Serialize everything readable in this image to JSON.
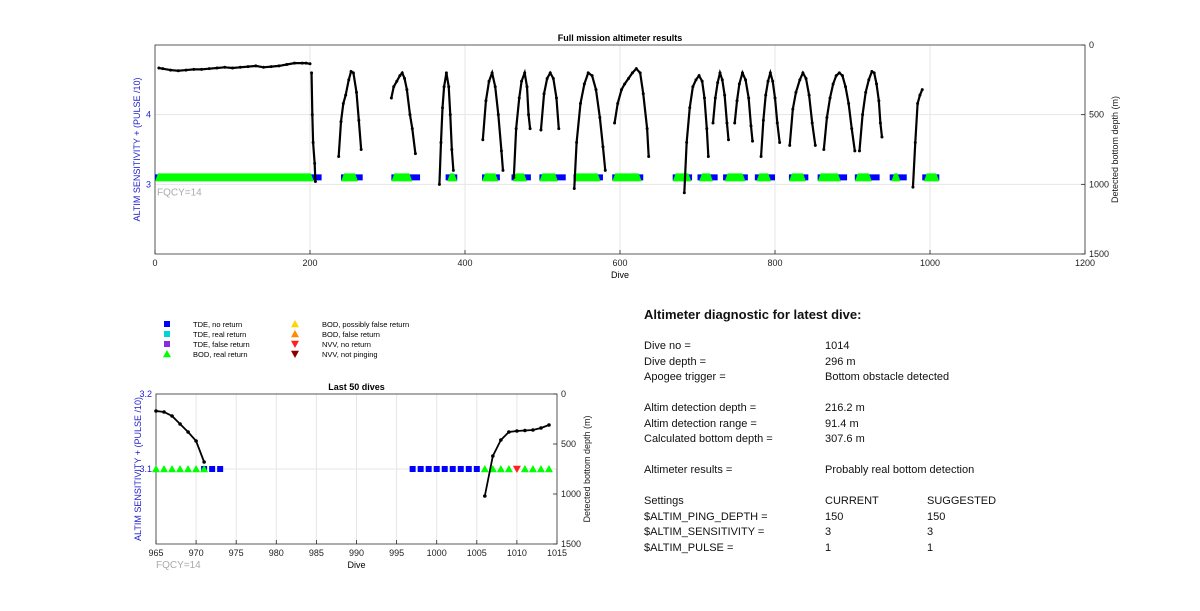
{
  "chart_data": [
    {
      "type": "scatter",
      "title": "Full mission altimeter results",
      "xlabel": "Dive",
      "ylabel_left": "ALTIM SENSITIVITY + (PULSE /10)",
      "ylabel_right": "Detected bottom depth (m)",
      "xlim": [
        0,
        1200
      ],
      "ylim_left": [
        2,
        5
      ],
      "ylim_right": [
        1500,
        0
      ],
      "x_ticks": [
        "0",
        "200",
        "400",
        "600",
        "800",
        "1000",
        "1200"
      ],
      "y_left_ticks": [
        "3",
        "4"
      ],
      "y_right_ticks": [
        "0",
        "500",
        "1000",
        "1500"
      ],
      "annotation": "FQCY=14",
      "grid": true,
      "tde_no_return_segments": [
        [
          0,
          215
        ],
        [
          240,
          268
        ],
        [
          305,
          342
        ],
        [
          375,
          390
        ],
        [
          422,
          445
        ],
        [
          460,
          485
        ],
        [
          496,
          530
        ],
        [
          540,
          578
        ],
        [
          590,
          630
        ],
        [
          668,
          693
        ],
        [
          700,
          726
        ],
        [
          733,
          765
        ],
        [
          774,
          800
        ],
        [
          818,
          843
        ],
        [
          855,
          893
        ],
        [
          903,
          935
        ],
        [
          948,
          970
        ],
        [
          990,
          1012
        ]
      ],
      "bod_real_return_segments": [
        [
          0,
          205
        ],
        [
          240,
          262
        ],
        [
          305,
          332
        ],
        [
          377,
          390
        ],
        [
          422,
          443
        ],
        [
          462,
          480
        ],
        [
          496,
          520
        ],
        [
          540,
          575
        ],
        [
          590,
          628
        ],
        [
          668,
          692
        ],
        [
          702,
          720
        ],
        [
          735,
          762
        ],
        [
          776,
          795
        ],
        [
          818,
          840
        ],
        [
          855,
          885
        ],
        [
          903,
          925
        ],
        [
          950,
          962
        ],
        [
          992,
          1012
        ]
      ],
      "mission_profile": [
        [
          5,
          165
        ],
        [
          10,
          170
        ],
        [
          20,
          180
        ],
        [
          30,
          185
        ],
        [
          40,
          180
        ],
        [
          50,
          175
        ],
        [
          60,
          175
        ],
        [
          70,
          170
        ],
        [
          80,
          165
        ],
        [
          90,
          160
        ],
        [
          100,
          165
        ],
        [
          110,
          160
        ],
        [
          120,
          155
        ],
        [
          130,
          150
        ],
        [
          140,
          160
        ],
        [
          150,
          155
        ],
        [
          160,
          150
        ],
        [
          170,
          140
        ],
        [
          180,
          130
        ],
        [
          190,
          130
        ],
        [
          195,
          130
        ],
        [
          200,
          135
        ]
      ],
      "bottom_depth_dives": [
        [
          [
            202,
            200
          ],
          [
            203,
            500
          ],
          [
            204,
            700
          ],
          [
            206,
            850
          ],
          [
            207,
            980
          ]
        ],
        [
          [
            237,
            800
          ],
          [
            240,
            550
          ],
          [
            243,
            420
          ],
          [
            246,
            360
          ],
          [
            250,
            250
          ],
          [
            253,
            190
          ],
          [
            256,
            200
          ],
          [
            260,
            340
          ],
          [
            263,
            540
          ],
          [
            266,
            750
          ]
        ],
        [
          [
            305,
            380
          ],
          [
            308,
            300
          ],
          [
            312,
            260
          ],
          [
            316,
            220
          ],
          [
            319,
            200
          ],
          [
            322,
            240
          ],
          [
            325,
            320
          ],
          [
            329,
            500
          ],
          [
            332,
            600
          ],
          [
            336,
            780
          ]
        ],
        [
          [
            367,
            1000
          ],
          [
            369,
            700
          ],
          [
            371,
            450
          ],
          [
            373,
            300
          ],
          [
            376,
            200
          ],
          [
            379,
            300
          ],
          [
            381,
            500
          ],
          [
            383,
            750
          ],
          [
            385,
            900
          ]
        ],
        [
          [
            423,
            680
          ],
          [
            427,
            400
          ],
          [
            431,
            260
          ],
          [
            435,
            200
          ],
          [
            439,
            300
          ],
          [
            443,
            500
          ],
          [
            447,
            760
          ],
          [
            449,
            900
          ]
        ],
        [
          [
            463,
            950
          ],
          [
            466,
            600
          ],
          [
            470,
            380
          ],
          [
            473,
            260
          ],
          [
            477,
            200
          ],
          [
            480,
            300
          ],
          [
            482,
            500
          ],
          [
            484,
            600
          ]
        ],
        [
          [
            498,
            610
          ],
          [
            502,
            350
          ],
          [
            506,
            240
          ],
          [
            510,
            200
          ],
          [
            514,
            240
          ],
          [
            518,
            380
          ],
          [
            521,
            600
          ]
        ],
        [
          [
            541,
            1030
          ],
          [
            544,
            700
          ],
          [
            549,
            420
          ],
          [
            554,
            280
          ],
          [
            559,
            200
          ],
          [
            564,
            220
          ],
          [
            569,
            320
          ],
          [
            574,
            520
          ],
          [
            578,
            730
          ],
          [
            581,
            900
          ]
        ],
        [
          [
            593,
            560
          ],
          [
            597,
            420
          ],
          [
            602,
            320
          ],
          [
            606,
            280
          ],
          [
            611,
            240
          ],
          [
            616,
            200
          ],
          [
            621,
            170
          ],
          [
            626,
            200
          ],
          [
            630,
            350
          ],
          [
            635,
            600
          ],
          [
            637,
            800
          ]
        ],
        [
          [
            683,
            1060
          ],
          [
            686,
            700
          ],
          [
            690,
            450
          ],
          [
            694,
            300
          ],
          [
            698,
            250
          ],
          [
            702,
            220
          ],
          [
            706,
            260
          ],
          [
            709,
            380
          ],
          [
            712,
            600
          ],
          [
            714,
            800
          ]
        ],
        [
          [
            720,
            560
          ],
          [
            723,
            380
          ],
          [
            726,
            270
          ],
          [
            729,
            200
          ],
          [
            732,
            250
          ],
          [
            735,
            360
          ],
          [
            738,
            560
          ],
          [
            740,
            680
          ]
        ],
        [
          [
            748,
            560
          ],
          [
            751,
            400
          ],
          [
            754,
            280
          ],
          [
            758,
            200
          ],
          [
            762,
            250
          ],
          [
            766,
            380
          ],
          [
            769,
            580
          ],
          [
            771,
            690
          ]
        ],
        [
          [
            782,
            800
          ],
          [
            785,
            540
          ],
          [
            788,
            360
          ],
          [
            791,
            260
          ],
          [
            794,
            200
          ],
          [
            797,
            260
          ],
          [
            800,
            380
          ],
          [
            803,
            560
          ],
          [
            806,
            700
          ]
        ],
        [
          [
            819,
            720
          ],
          [
            823,
            460
          ],
          [
            827,
            340
          ],
          [
            832,
            250
          ],
          [
            836,
            200
          ],
          [
            840,
            240
          ],
          [
            844,
            360
          ],
          [
            848,
            560
          ],
          [
            852,
            720
          ]
        ],
        [
          [
            863,
            750
          ],
          [
            867,
            520
          ],
          [
            871,
            380
          ],
          [
            875,
            280
          ],
          [
            879,
            220
          ],
          [
            883,
            200
          ],
          [
            887,
            220
          ],
          [
            891,
            300
          ],
          [
            895,
            420
          ],
          [
            899,
            600
          ],
          [
            903,
            760
          ]
        ],
        [
          [
            909,
            760
          ],
          [
            913,
            500
          ],
          [
            917,
            340
          ],
          [
            921,
            250
          ],
          [
            925,
            190
          ],
          [
            928,
            200
          ],
          [
            931,
            280
          ],
          [
            934,
            400
          ],
          [
            936,
            560
          ],
          [
            938,
            660
          ]
        ],
        [
          [
            978,
            1020
          ],
          [
            981,
            700
          ],
          [
            984,
            420
          ],
          [
            987,
            360
          ],
          [
            990,
            320
          ]
        ]
      ]
    },
    {
      "type": "scatter",
      "title": "Last 50 dives",
      "xlabel": "Dive",
      "ylabel_left": "ALTIM SENSITIVITY + (PULSE /10)",
      "ylabel_right": "Detected bottom depth (m)",
      "xlim": [
        965,
        1015
      ],
      "ylim_left": [
        3.0,
        3.2
      ],
      "ylim_right": [
        1500,
        0
      ],
      "x_ticks": [
        "965",
        "970",
        "975",
        "980",
        "985",
        "990",
        "995",
        "1000",
        "1005",
        "1010",
        "1015"
      ],
      "y_left_ticks": [
        "3.1",
        "3.2"
      ],
      "y_right_ticks": [
        "0",
        "500",
        "1000",
        "1500"
      ],
      "annotation": "FQCY=14",
      "grid": true,
      "tde_no_return_dives": [
        971,
        972,
        973,
        997,
        998,
        999,
        1000,
        1001,
        1002,
        1003,
        1004,
        1005
      ],
      "bod_real_return_dives": [
        965,
        966,
        967,
        968,
        969,
        970,
        971,
        1006,
        1007,
        1008,
        1009,
        1011,
        1012,
        1013,
        1014
      ],
      "nvv_no_return_dives": [
        1010
      ],
      "bottom_depth_before_gap": [
        [
          965,
          170
        ],
        [
          966,
          180
        ],
        [
          967,
          220
        ],
        [
          968,
          300
        ],
        [
          969,
          380
        ],
        [
          970,
          470
        ],
        [
          971,
          680
        ]
      ],
      "bottom_depth_after_gap": [
        [
          1006,
          1020
        ],
        [
          1007,
          620
        ],
        [
          1008,
          460
        ],
        [
          1009,
          380
        ],
        [
          1010,
          370
        ],
        [
          1011,
          365
        ],
        [
          1012,
          360
        ],
        [
          1013,
          340
        ],
        [
          1014,
          310
        ]
      ]
    }
  ],
  "legend": {
    "col1": [
      "TDE, no return",
      "TDE, real return",
      "TDE, false return",
      "BOD, real return"
    ],
    "col2": [
      "BOD, possibly false return",
      "BOD, false return",
      "NVV, no return",
      "NVV, not pinging"
    ],
    "colors": {
      "tde_no_return": "#0000ff",
      "tde_real_return": "#00d4d4",
      "tde_false_return": "#8a2be2",
      "bod_real_return": "#00ff00",
      "bod_possibly_false": "#ffd400",
      "bod_false": "#ff8c00",
      "nvv_no_return": "#ff2020",
      "nvv_not_pinging": "#8b0000"
    }
  },
  "diagnostic": {
    "title": "Altimeter diagnostic for latest dive:",
    "dive_no_label": "Dive no =",
    "dive_no": "1014",
    "dive_depth_label": "Dive depth =",
    "dive_depth": "296 m",
    "apogee_label": "Apogee trigger =",
    "apogee": "Bottom obstacle detected",
    "altim_depth_label": "Altim detection depth =",
    "altim_depth": "216.2 m",
    "altim_range_label": "Altim detection range =",
    "altim_range": "91.4 m",
    "calc_bottom_label": "Calculated bottom depth =",
    "calc_bottom": "307.6 m",
    "results_label": "Altimeter results =",
    "results": "Probably real bottom detection",
    "settings_label": "Settings",
    "current_label": "CURRENT",
    "suggested_label": "SUGGESTED",
    "settings": [
      {
        "name": "$ALTIM_PING_DEPTH =",
        "current": "150",
        "suggested": "150"
      },
      {
        "name": "$ALTIM_SENSITIVITY =",
        "current": "3",
        "suggested": "3"
      },
      {
        "name": "$ALTIM_PULSE =",
        "current": "1",
        "suggested": "1"
      }
    ]
  }
}
